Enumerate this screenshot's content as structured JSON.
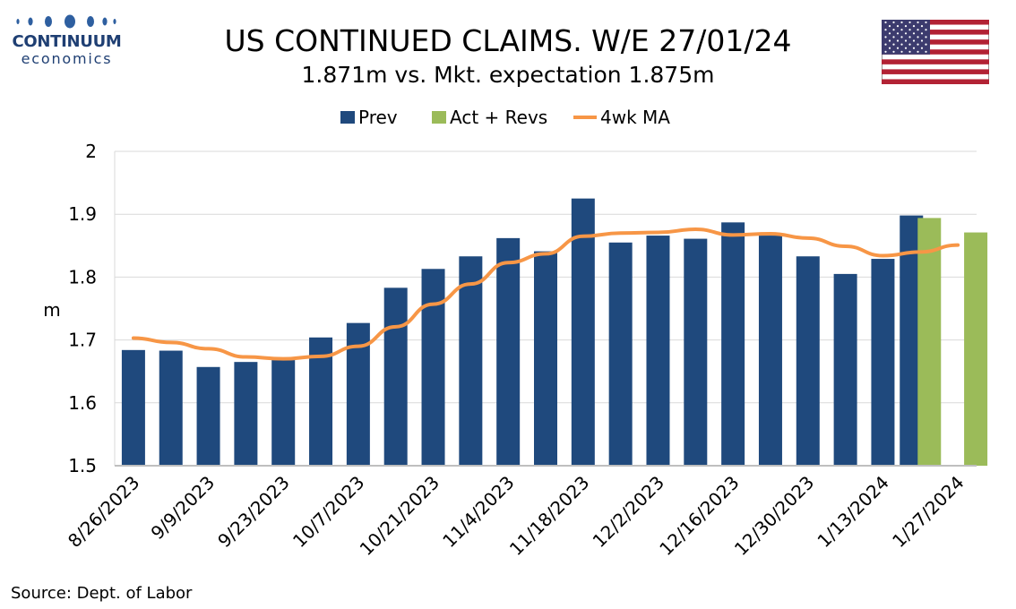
{
  "logo": {
    "name": "CONTINUUM",
    "sub": "economics"
  },
  "header": {
    "title": "US CONTINUED CLAIMS. W/E 27/01/24",
    "subtitle": "1.871m vs. Mkt. expectation 1.875m"
  },
  "source": "Source: Dept. of Labor",
  "flag_icon": "us-flag-icon",
  "colors": {
    "prev": "#1f497d",
    "act": "#9bbb59",
    "ma": "#f79646",
    "brand": "#1f3f73"
  },
  "chart_data": {
    "type": "bar",
    "ylabel": "m",
    "ylim": [
      1.5,
      2.0
    ],
    "yticks": [
      "1.5",
      "1.6",
      "1.7",
      "1.8",
      "1.9",
      "2"
    ],
    "grid": true,
    "legend_position": "top",
    "categories": [
      "8/26/2023",
      "9/2/2023",
      "9/9/2023",
      "9/16/2023",
      "9/23/2023",
      "9/30/2023",
      "10/7/2023",
      "10/14/2023",
      "10/21/2023",
      "10/28/2023",
      "11/4/2023",
      "11/11/2023",
      "11/18/2023",
      "11/25/2023",
      "12/2/2023",
      "12/9/2023",
      "12/16/2023",
      "12/23/2023",
      "12/30/2023",
      "1/6/2024",
      "1/13/2024",
      "1/20/2024",
      "1/27/2024"
    ],
    "tick_labels": [
      "8/26/2023",
      "9/9/2023",
      "9/23/2023",
      "10/7/2023",
      "10/21/2023",
      "11/4/2023",
      "11/18/2023",
      "12/2/2023",
      "12/16/2023",
      "12/30/2023",
      "1/13/2024",
      "1/27/2024"
    ],
    "series": [
      {
        "name": "Prev",
        "type": "bar",
        "values": [
          1.684,
          1.683,
          1.657,
          1.665,
          1.668,
          1.704,
          1.727,
          1.783,
          1.813,
          1.833,
          1.862,
          1.841,
          1.925,
          1.855,
          1.866,
          1.861,
          1.887,
          1.866,
          1.833,
          1.805,
          1.829,
          1.898,
          null
        ]
      },
      {
        "name": "Act + Revs",
        "type": "bar",
        "values": [
          null,
          null,
          null,
          null,
          null,
          null,
          null,
          null,
          null,
          null,
          null,
          null,
          null,
          null,
          null,
          null,
          null,
          null,
          null,
          null,
          null,
          1.894,
          1.871
        ]
      },
      {
        "name": "4wk MA",
        "type": "line",
        "values": [
          1.703,
          1.696,
          1.686,
          1.673,
          1.67,
          1.674,
          1.69,
          1.721,
          1.757,
          1.789,
          1.823,
          1.837,
          1.865,
          1.87,
          1.871,
          1.876,
          1.867,
          1.869,
          1.862,
          1.849,
          1.834,
          1.84,
          1.851
        ]
      }
    ]
  }
}
